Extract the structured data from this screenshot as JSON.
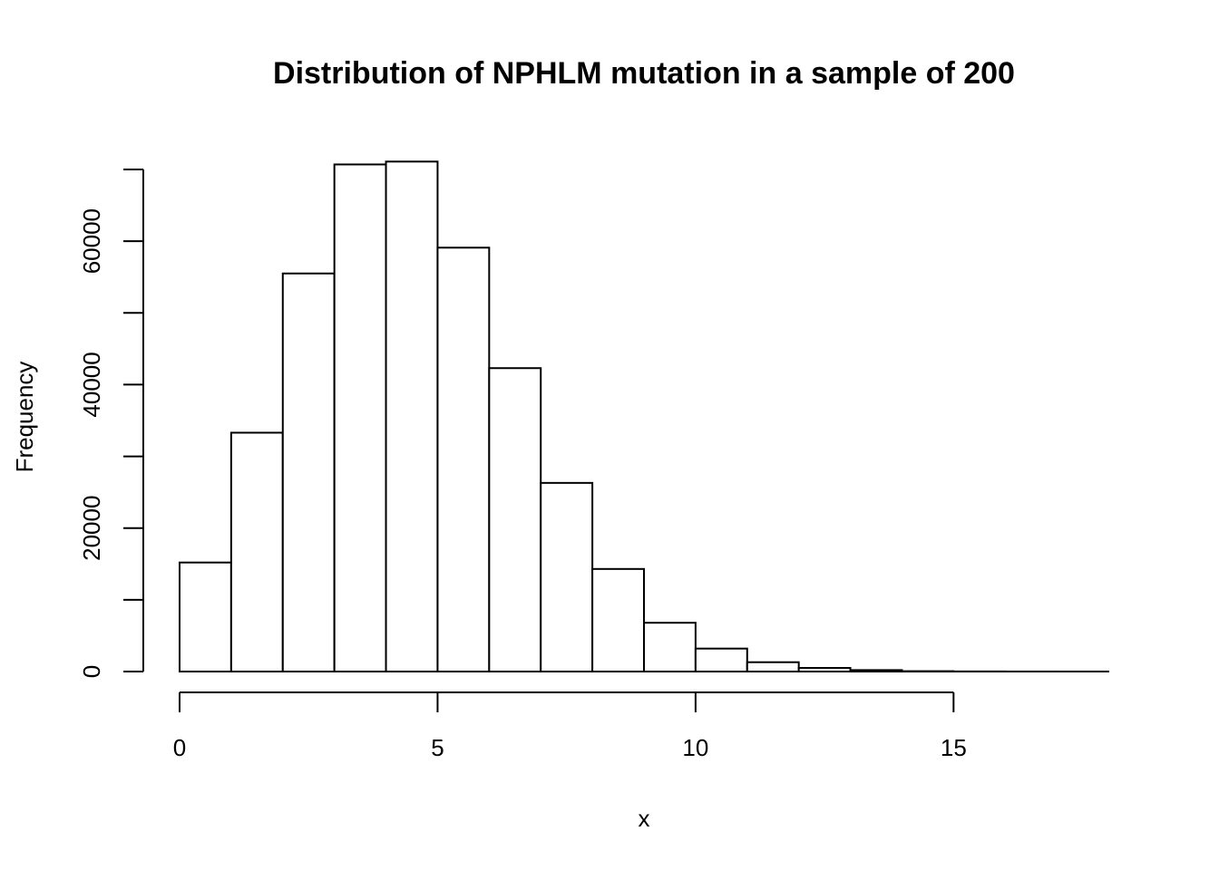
{
  "chart_data": {
    "type": "bar",
    "title": "Distribution of NPHLM mutation in a sample of 200",
    "xlabel": "x",
    "ylabel": "Frequency",
    "bins": [
      {
        "start": 0,
        "end": 1,
        "value": 15200
      },
      {
        "start": 1,
        "end": 2,
        "value": 33300
      },
      {
        "start": 2,
        "end": 3,
        "value": 55500
      },
      {
        "start": 3,
        "end": 4,
        "value": 70700
      },
      {
        "start": 4,
        "end": 5,
        "value": 71100
      },
      {
        "start": 5,
        "end": 6,
        "value": 59100
      },
      {
        "start": 6,
        "end": 7,
        "value": 42300
      },
      {
        "start": 7,
        "end": 8,
        "value": 26300
      },
      {
        "start": 8,
        "end": 9,
        "value": 14300
      },
      {
        "start": 9,
        "end": 10,
        "value": 6800
      },
      {
        "start": 10,
        "end": 11,
        "value": 3200
      },
      {
        "start": 11,
        "end": 12,
        "value": 1300
      },
      {
        "start": 12,
        "end": 13,
        "value": 500
      },
      {
        "start": 13,
        "end": 14,
        "value": 200
      },
      {
        "start": 14,
        "end": 15,
        "value": 50
      },
      {
        "start": 15,
        "end": 16,
        "value": 15
      },
      {
        "start": 16,
        "end": 17,
        "value": 5
      },
      {
        "start": 17,
        "end": 18,
        "value": 2
      }
    ],
    "xlim": [
      0,
      18
    ],
    "ylim": [
      0,
      70000
    ],
    "x_ticks": [
      0,
      5,
      10,
      15
    ],
    "x_tick_labels": [
      "0",
      "5",
      "10",
      "15"
    ],
    "y_ticks": [
      0,
      10000,
      20000,
      30000,
      40000,
      50000,
      60000,
      70000
    ],
    "y_tick_labels": [
      "0",
      "",
      "20000",
      "",
      "40000",
      "",
      "60000",
      ""
    ],
    "grid": false,
    "bar_fill": "#ffffff",
    "bar_stroke": "#000000"
  }
}
